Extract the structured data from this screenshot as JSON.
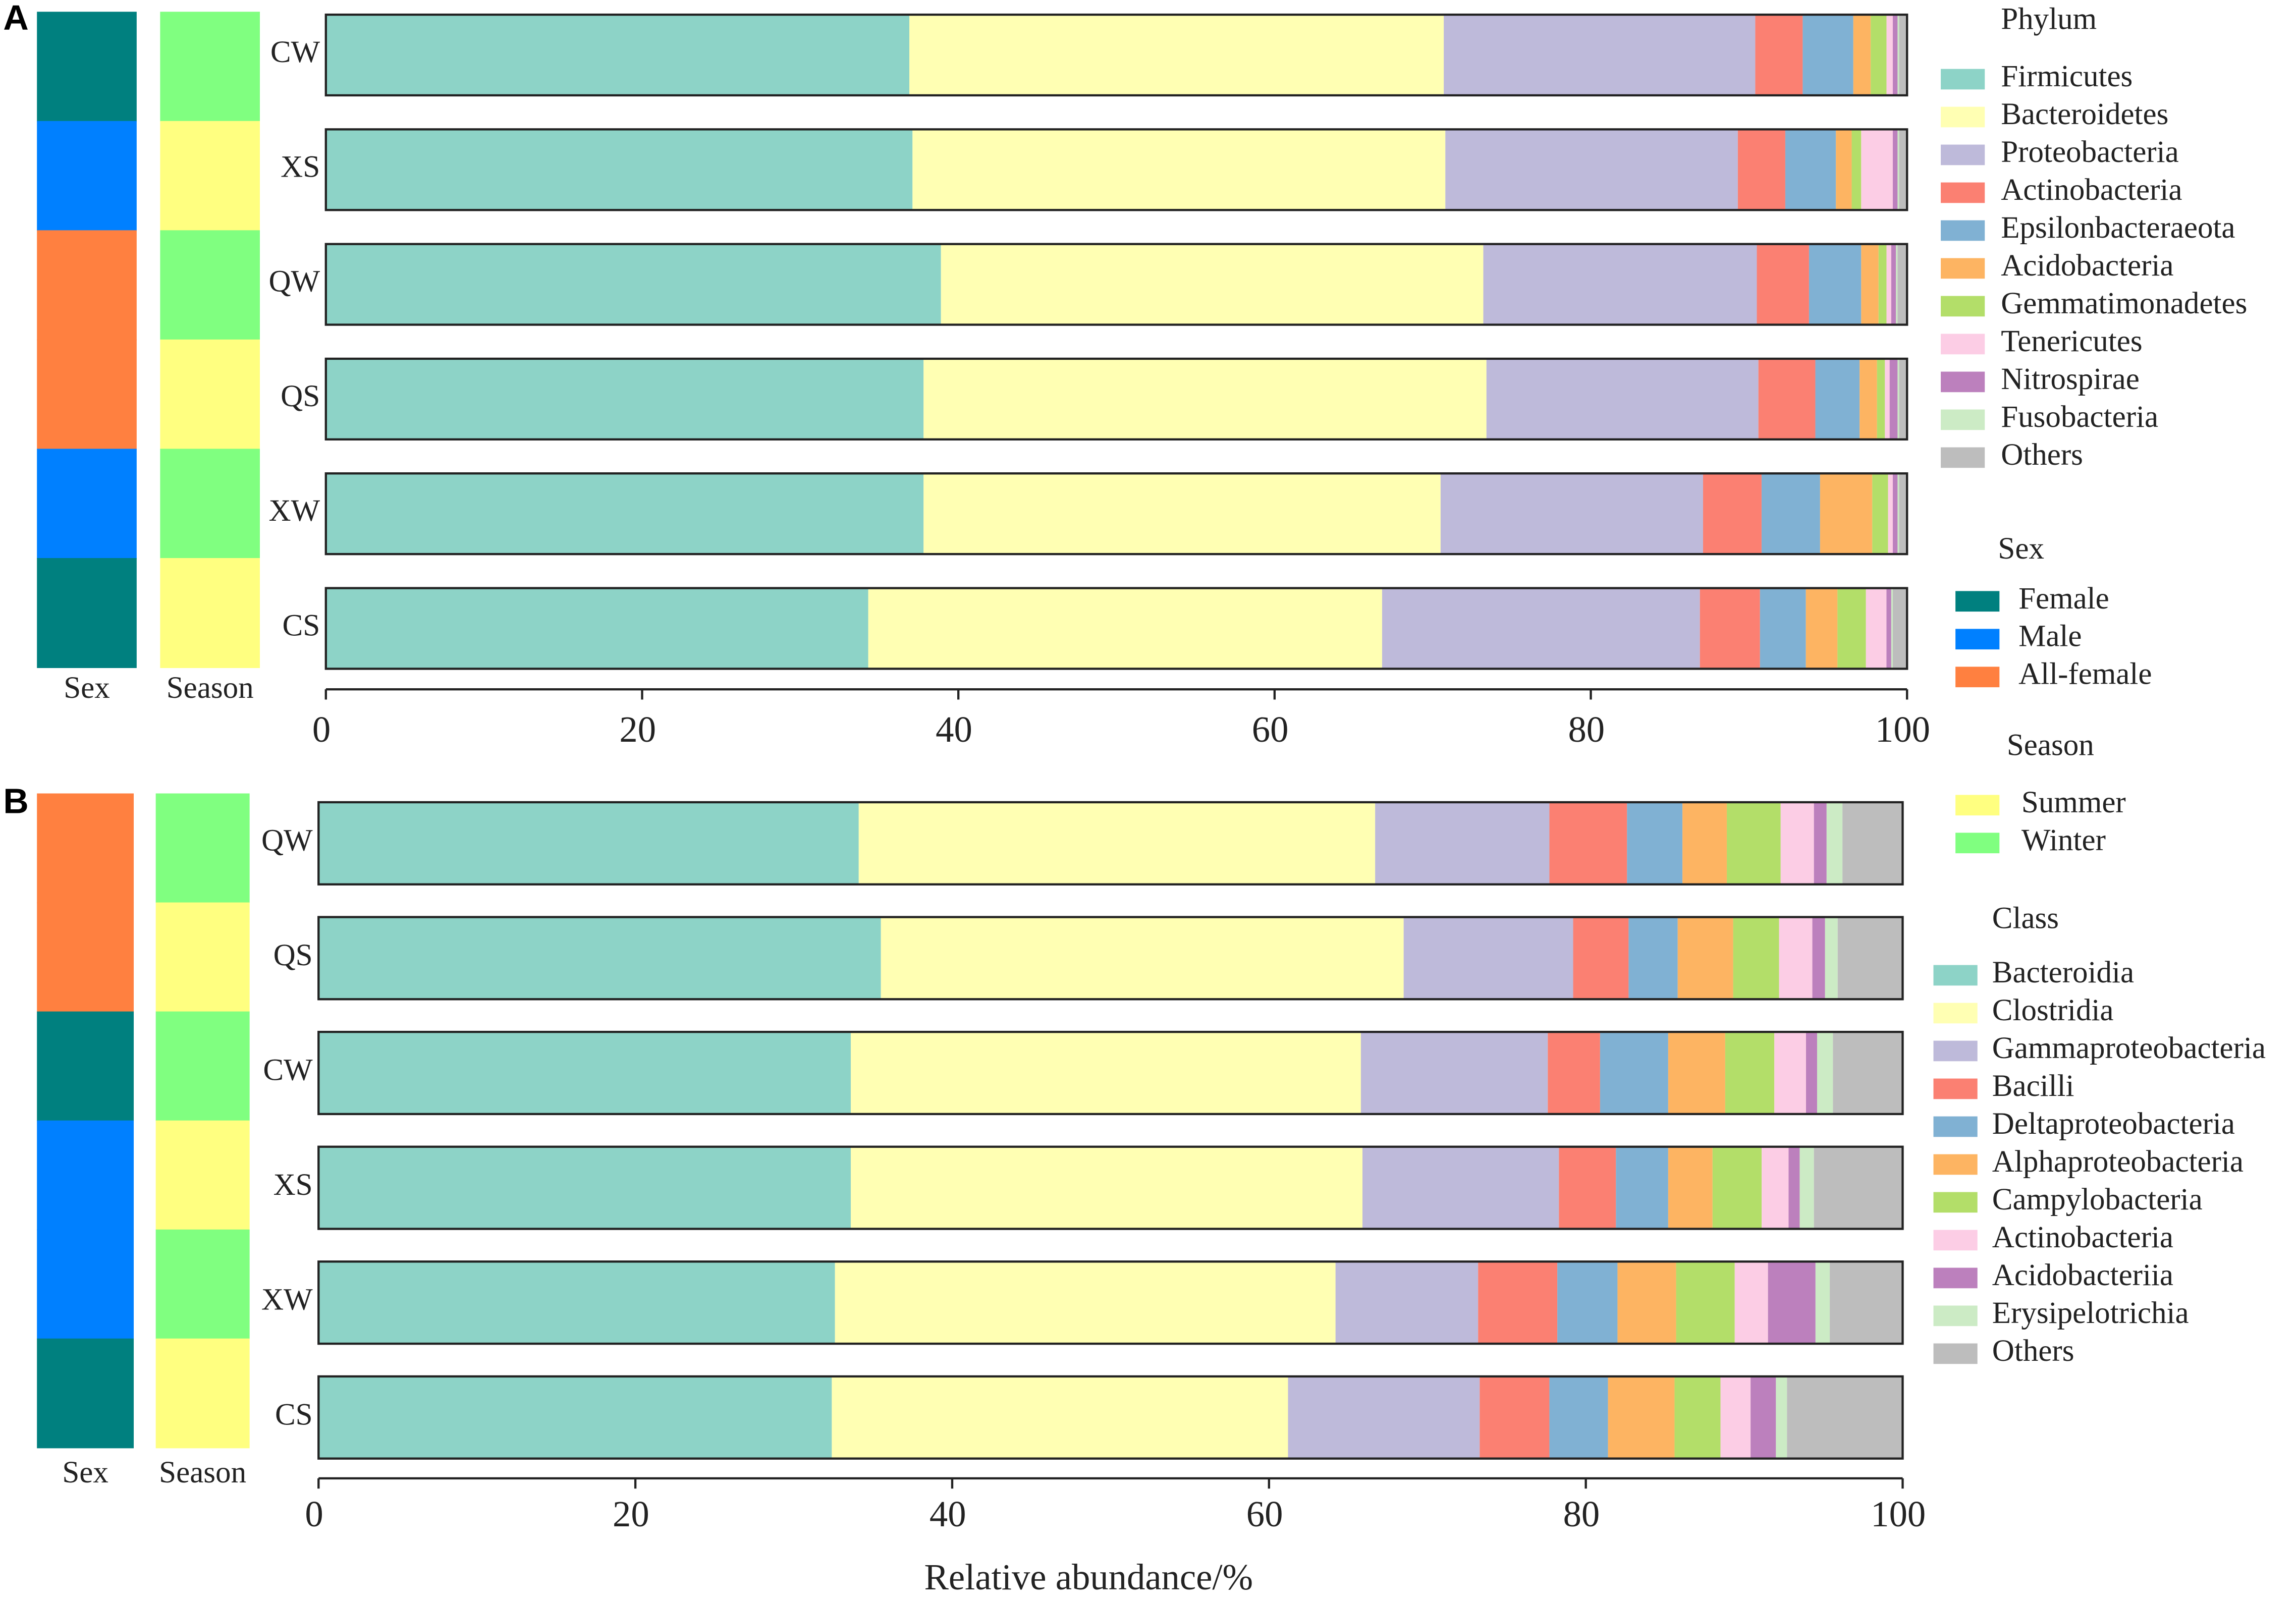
{
  "chart_data": [
    {
      "type": "bar",
      "panel": "A",
      "legend_title": "Phylum",
      "categories": [
        "CW",
        "XS",
        "QW",
        "QS",
        "XW",
        "CS"
      ],
      "annotation_columns": [
        {
          "label": "Sex",
          "values": [
            "Female",
            "Male",
            "All-female",
            "All-female",
            "Male",
            "Female"
          ]
        },
        {
          "label": "Season",
          "values": [
            "Winter",
            "Summer",
            "Winter",
            "Summer",
            "Winter",
            "Summer"
          ]
        }
      ],
      "series": [
        {
          "name": "Firmicutes",
          "color": "#8dd3c7",
          "values": [
            36.9,
            37.1,
            38.9,
            37.8,
            37.8,
            34.3
          ]
        },
        {
          "name": "Bacteroidetes",
          "color": "#ffffb3",
          "values": [
            33.8,
            33.7,
            34.3,
            35.6,
            32.7,
            32.5
          ]
        },
        {
          "name": "Proteobacteria",
          "color": "#bebada",
          "values": [
            19.7,
            18.5,
            17.3,
            17.2,
            16.6,
            20.1
          ]
        },
        {
          "name": "Actinobacteria",
          "color": "#fb8072",
          "values": [
            3.0,
            3.0,
            3.3,
            3.6,
            3.7,
            3.8
          ]
        },
        {
          "name": "Epsilonbacteraeota",
          "color": "#80b1d3",
          "values": [
            3.2,
            3.2,
            3.3,
            2.8,
            3.7,
            2.9
          ]
        },
        {
          "name": "Acidobacteria",
          "color": "#fdb462",
          "values": [
            1.1,
            1.0,
            1.1,
            1.1,
            3.3,
            2.0
          ]
        },
        {
          "name": "Gemmatimonadetes",
          "color": "#b3de69",
          "values": [
            1.0,
            0.6,
            0.5,
            0.5,
            1.0,
            1.8
          ]
        },
        {
          "name": "Tenericutes",
          "color": "#fccde5",
          "values": [
            0.4,
            2.0,
            0.3,
            0.3,
            0.3,
            1.3
          ]
        },
        {
          "name": "Nitrospirae",
          "color": "#bc80bd",
          "values": [
            0.3,
            0.3,
            0.3,
            0.5,
            0.3,
            0.3
          ]
        },
        {
          "name": "Fusobacteria",
          "color": "#ccebc5",
          "values": [
            0.1,
            0.1,
            0.1,
            0.1,
            0.1,
            0.1
          ]
        },
        {
          "name": "Others",
          "color": "#bdbdbd",
          "values": [
            0.5,
            0.5,
            0.6,
            0.5,
            0.5,
            0.9
          ]
        }
      ],
      "xlim": [
        0,
        100
      ],
      "xticks": [
        0,
        20,
        40,
        60,
        80,
        100
      ]
    },
    {
      "type": "bar",
      "panel": "B",
      "legend_title": "Class",
      "xlabel": "Relative abundance/%",
      "categories": [
        "QW",
        "QS",
        "CW",
        "XS",
        "XW",
        "CS"
      ],
      "annotation_columns": [
        {
          "label": "Sex",
          "values": [
            "All-female",
            "All-female",
            "Female",
            "Male",
            "Male",
            "Female"
          ]
        },
        {
          "label": "Season",
          "values": [
            "Winter",
            "Summer",
            "Winter",
            "Summer",
            "Winter",
            "Summer"
          ]
        }
      ],
      "series": [
        {
          "name": "Bacteroidia",
          "color": "#8dd3c7",
          "values": [
            34.1,
            35.5,
            33.6,
            33.6,
            32.6,
            32.4
          ]
        },
        {
          "name": "Clostridia",
          "color": "#ffffb3",
          "values": [
            32.6,
            33.0,
            32.2,
            32.3,
            31.6,
            28.8
          ]
        },
        {
          "name": "Gammaproteobacteria",
          "color": "#bebada",
          "values": [
            11.0,
            10.7,
            11.8,
            12.4,
            9.0,
            12.1
          ]
        },
        {
          "name": "Bacilli",
          "color": "#fb8072",
          "values": [
            4.9,
            3.5,
            3.3,
            3.6,
            5.0,
            4.4
          ]
        },
        {
          "name": "Deltaproteobacteria",
          "color": "#80b1d3",
          "values": [
            3.5,
            3.1,
            4.3,
            3.3,
            3.8,
            3.7
          ]
        },
        {
          "name": "Alphaproteobacteria",
          "color": "#fdb462",
          "values": [
            2.8,
            3.5,
            3.6,
            2.8,
            3.7,
            4.2
          ]
        },
        {
          "name": "Campylobacteria",
          "color": "#b3de69",
          "values": [
            3.4,
            2.9,
            3.1,
            3.1,
            3.7,
            2.9
          ]
        },
        {
          "name": "Actinobacteria",
          "color": "#fccde5",
          "values": [
            2.1,
            2.1,
            2.0,
            1.7,
            2.1,
            1.9
          ]
        },
        {
          "name": "Acidobacteriia",
          "color": "#bc80bd",
          "values": [
            0.8,
            0.8,
            0.7,
            0.7,
            3.0,
            1.6
          ]
        },
        {
          "name": "Erysipelotrichia",
          "color": "#ccebc5",
          "values": [
            1.0,
            0.8,
            1.0,
            0.9,
            0.9,
            0.7
          ]
        },
        {
          "name": "Others",
          "color": "#bdbdbd",
          "values": [
            3.8,
            4.1,
            4.4,
            5.6,
            4.6,
            7.3
          ]
        }
      ],
      "xlim": [
        0,
        100
      ],
      "xticks": [
        0,
        20,
        40,
        60,
        80,
        100
      ]
    }
  ],
  "sex_legend": {
    "title": "Sex",
    "items": [
      {
        "name": "Female",
        "color": "#00807f"
      },
      {
        "name": "Male",
        "color": "#0080ff"
      },
      {
        "name": "All-female",
        "color": "#ff8040"
      }
    ]
  },
  "season_legend": {
    "title": "Season",
    "items": [
      {
        "name": "Summer",
        "color": "#ffff80"
      },
      {
        "name": "Winter",
        "color": "#80ff80"
      }
    ]
  }
}
